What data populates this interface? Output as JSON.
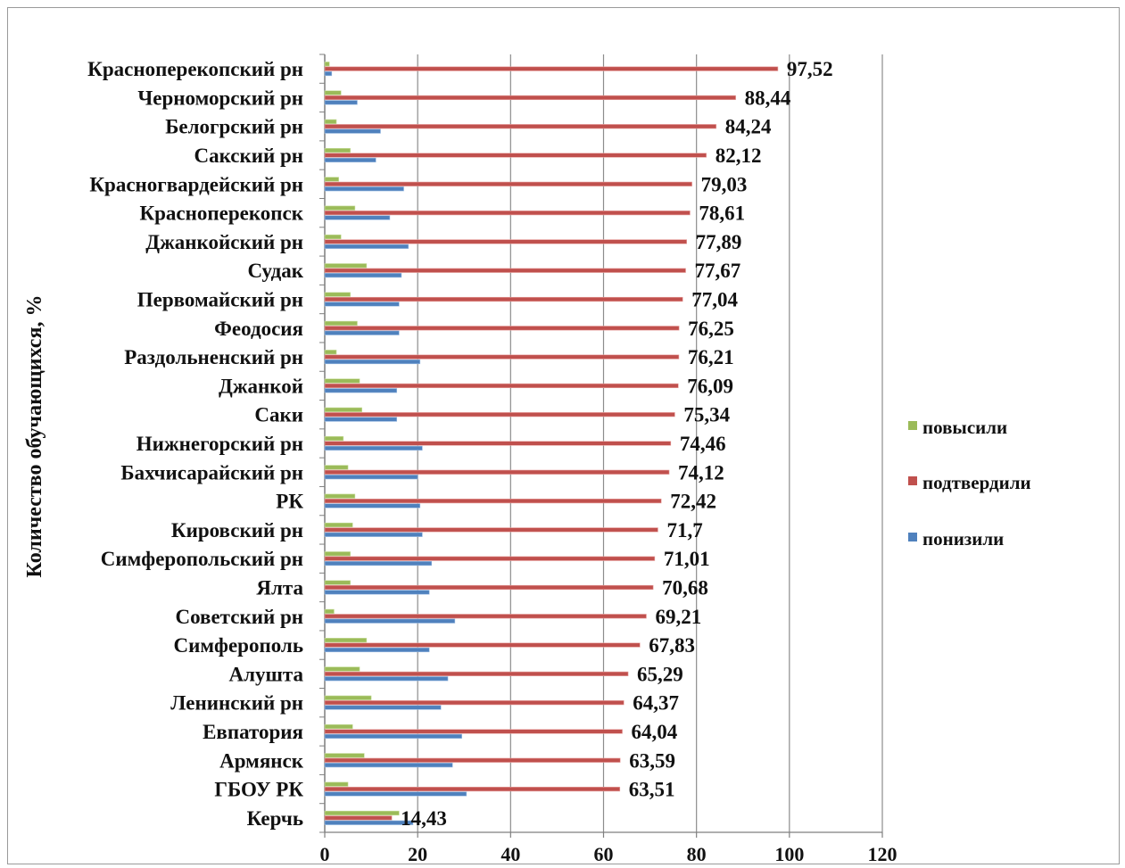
{
  "chart_data": {
    "type": "bar",
    "orientation": "horizontal",
    "ylabel": "Количество обучающихся, %",
    "xlim": [
      0,
      120
    ],
    "xticks": [
      0,
      20,
      40,
      60,
      80,
      100,
      120
    ],
    "grid": true,
    "legend_position": "right",
    "categories": [
      "Красноперекопский рн",
      "Черноморский рн",
      "Белогрский рн",
      "Сакский рн",
      "Красногвардейский рн",
      "Красноперекопск",
      "Джанкойский рн",
      "Судак",
      "Первомайский рн",
      "Феодосия",
      "Раздольненский рн",
      "Джанкой",
      "Саки",
      "Нижнегорский рн",
      "Бахчисарайский рн",
      "РК",
      "Кировский рн",
      "Симферопольский рн",
      "Ялта",
      "Советский рн",
      "Симферополь",
      "Алушта",
      "Ленинский рн",
      "Евпатория",
      "Армянск",
      "ГБОУ РК",
      "Керчь"
    ],
    "series": [
      {
        "name": "повысили",
        "color": "#9bbb59",
        "values": [
          1.0,
          3.5,
          2.5,
          5.5,
          3.0,
          6.5,
          3.5,
          9.0,
          5.5,
          7.0,
          2.5,
          7.5,
          8.0,
          4.0,
          5.0,
          6.5,
          6.0,
          5.5,
          5.5,
          2.0,
          9.0,
          7.5,
          10.0,
          6.0,
          8.5,
          5.0,
          16.0
        ]
      },
      {
        "name": "подтвердили",
        "color": "#c0504d",
        "values": [
          97.52,
          88.44,
          84.24,
          82.12,
          79.03,
          78.61,
          77.89,
          77.67,
          77.04,
          76.25,
          76.21,
          76.09,
          75.34,
          74.46,
          74.12,
          72.42,
          71.7,
          71.01,
          70.68,
          69.21,
          67.83,
          65.29,
          64.37,
          64.04,
          63.59,
          63.51,
          14.43
        ]
      },
      {
        "name": "понизили",
        "color": "#4f81bd",
        "values": [
          1.5,
          7.0,
          12.0,
          11.0,
          17.0,
          14.0,
          18.0,
          16.5,
          16.0,
          16.0,
          20.5,
          15.5,
          15.5,
          21.0,
          20.0,
          20.5,
          21.0,
          23.0,
          22.5,
          28.0,
          22.5,
          26.5,
          25.0,
          29.5,
          27.5,
          30.5,
          19.0
        ]
      }
    ],
    "data_labels": [
      "97,52",
      "88,44",
      "84,24",
      "82,12",
      "79,03",
      "78,61",
      "77,89",
      "77,67",
      "77,04",
      "76,25",
      "76,21",
      "76,09",
      "75,34",
      "74,46",
      "74,12",
      "72,42",
      "71,7",
      "71,01",
      "70,68",
      "69,21",
      "67,83",
      "65,29",
      "64,37",
      "64,04",
      "63,59",
      "63,51",
      "14,43"
    ]
  },
  "legend": [
    {
      "label": "повысили",
      "color": "#9bbb59"
    },
    {
      "label": "подтвердили",
      "color": "#c0504d"
    },
    {
      "label": "понизили",
      "color": "#4f81bd"
    }
  ]
}
